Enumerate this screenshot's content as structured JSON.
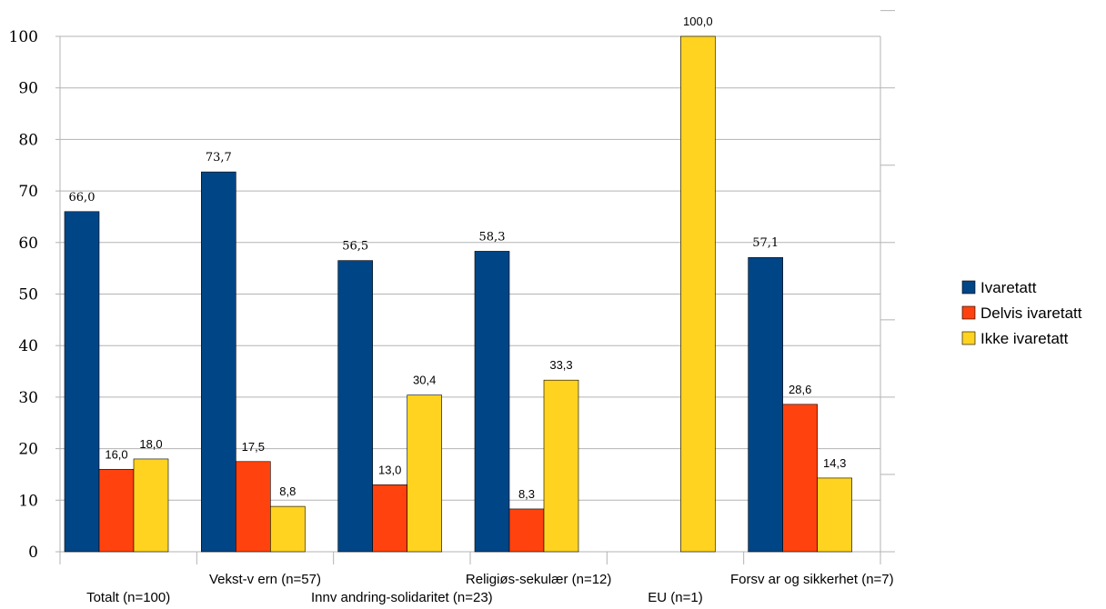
{
  "chart_data": {
    "type": "bar",
    "categories": [
      "Totalt  (n=100)",
      "Vekst-v ern (n=57)",
      "Innv andring-solidaritet (n=23)",
      "Religiøs-sekulær (n=12)",
      "EU (n=1)",
      "Forsv ar og sikkerhet (n=7)"
    ],
    "series": [
      {
        "name": "Ivaretatt",
        "color": "#004586",
        "values": [
          66.0,
          73.7,
          56.5,
          58.3,
          null,
          57.1
        ],
        "labels": [
          "66,0",
          "73,7",
          "56,5",
          "58,3",
          "",
          "57,1"
        ]
      },
      {
        "name": "Delvis ivaretatt",
        "color": "#ff420e",
        "values": [
          16.0,
          17.5,
          13.0,
          8.3,
          null,
          28.6
        ],
        "labels": [
          "16,0",
          "17,5",
          "13,0",
          "8,3",
          "",
          "28,6"
        ]
      },
      {
        "name": "Ikke ivaretatt",
        "color": "#ffd320",
        "values": [
          18.0,
          8.8,
          30.4,
          33.3,
          100.0,
          14.3
        ],
        "labels": [
          "18,0",
          "8,8",
          "30,4",
          "33,3",
          "100,0",
          "14,3"
        ]
      }
    ],
    "y_ticks": [
      "0",
      "10",
      "20",
      "30",
      "40",
      "50",
      "60",
      "70",
      "80",
      "90",
      "100"
    ],
    "ylim": [
      0,
      100
    ],
    "grid": true,
    "legend": "right"
  }
}
